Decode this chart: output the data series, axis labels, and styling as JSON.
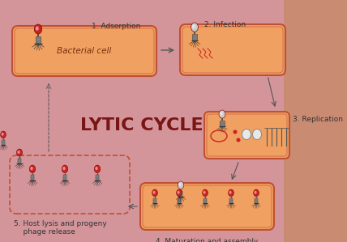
{
  "bg_color": "#d4959a",
  "title": "LYTIC CYCLE",
  "title_color": "#7a1515",
  "title_fontsize": 16,
  "title_weight": "bold",
  "cell_fill": "#f0a060",
  "cell_edge": "#c05030",
  "labels": {
    "step1": "1. Adsorption",
    "step2": "2. Infection",
    "step3": "3. Replication",
    "step4": "4. Maturation and assembly",
    "step5": "5. Host lysis and progeny\n    phage release",
    "bacterial": "Bacterial cell"
  },
  "label_fontsize": 6.5,
  "bacterial_fontsize": 7.5,
  "arrow_color": "#555555",
  "phage_head_red": "#cc2222",
  "phage_head_grey": "#cccccc",
  "phage_body": "#333333"
}
